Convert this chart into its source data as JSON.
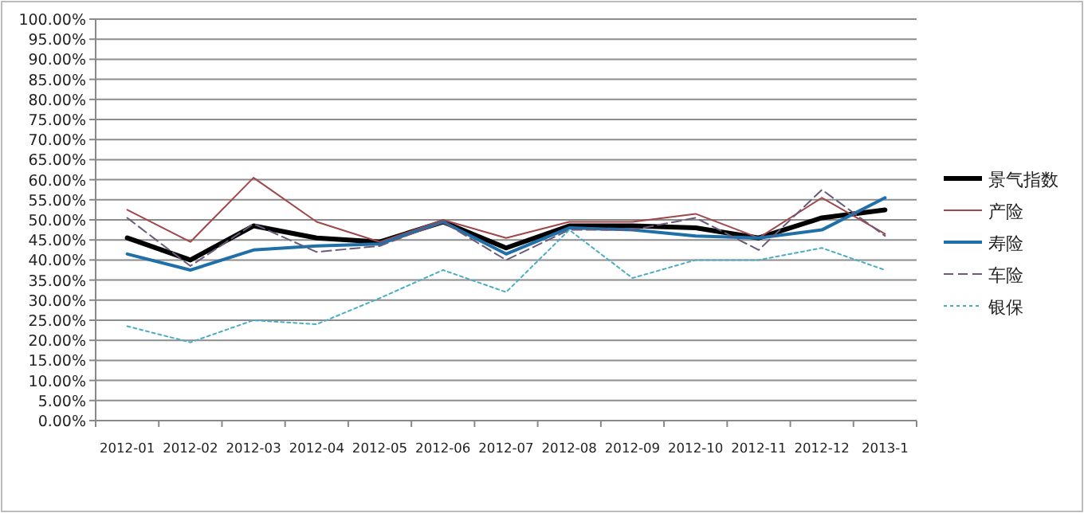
{
  "chart_data": {
    "type": "line",
    "categories": [
      "2012-01",
      "2012-02",
      "2012-03",
      "2012-04",
      "2012-05",
      "2012-06",
      "2012-07",
      "2012-08",
      "2012-09",
      "2012-10",
      "2012-11",
      "2012-12",
      "2013-1"
    ],
    "series": [
      {
        "name": "景气指数",
        "color": "#000000",
        "values": [
          45.5,
          40,
          48.5,
          45.5,
          44.5,
          49.5,
          43,
          48.5,
          48.5,
          48,
          45.5,
          50.5,
          52.5
        ]
      },
      {
        "name": "产险",
        "color": "#a0474b",
        "values": [
          52.5,
          44.5,
          60.5,
          49.5,
          44.5,
          50,
          45.5,
          49.5,
          49.5,
          51.5,
          45.5,
          55.5,
          46.5
        ]
      },
      {
        "name": "寿险",
        "color": "#1f6fa8",
        "values": [
          41.5,
          37.5,
          42.5,
          43.5,
          44,
          49.5,
          41.5,
          48,
          47.5,
          46,
          45.5,
          47.5,
          55.5
        ]
      },
      {
        "name": "车险",
        "color": "#6a5a7a",
        "line_style": "dashed",
        "values": [
          50.5,
          38.5,
          49,
          42,
          43.5,
          49.5,
          40,
          47.5,
          47.5,
          50.5,
          42.5,
          57.5,
          46
        ]
      },
      {
        "name": "银保",
        "color": "#4bacc6",
        "line_style": "dotted",
        "values": [
          23.5,
          19.5,
          25,
          24,
          30.5,
          37.5,
          32,
          47.5,
          35.5,
          40,
          40,
          43,
          37.5
        ]
      }
    ],
    "ylim": [
      0,
      100
    ],
    "yticks": [
      {
        "value": 0,
        "label": "0.00%"
      },
      {
        "value": 5,
        "label": "5.00%"
      },
      {
        "value": 10,
        "label": "10.00%"
      },
      {
        "value": 15,
        "label": "15.00%"
      },
      {
        "value": 20,
        "label": "20.00%"
      },
      {
        "value": 25,
        "label": "25.00%"
      },
      {
        "value": 30,
        "label": "30.00%"
      },
      {
        "value": 35,
        "label": "35.00%"
      },
      {
        "value": 40,
        "label": "40.00%"
      },
      {
        "value": 45,
        "label": "45.00%"
      },
      {
        "value": 50,
        "label": "50.00%"
      },
      {
        "value": 55,
        "label": "55.00%"
      },
      {
        "value": 60,
        "label": "60.00%"
      },
      {
        "value": 65,
        "label": "65.00%"
      },
      {
        "value": 70,
        "label": "70.00%"
      },
      {
        "value": 75,
        "label": "75.00%"
      },
      {
        "value": 80,
        "label": "80.00%"
      },
      {
        "value": 85,
        "label": "85.00%"
      },
      {
        "value": 90,
        "label": "90.00%"
      },
      {
        "value": 95,
        "label": "95.00%"
      },
      {
        "value": 100,
        "label": "100.00%"
      }
    ],
    "grid": "y",
    "legend": "right",
    "marker": "none"
  }
}
